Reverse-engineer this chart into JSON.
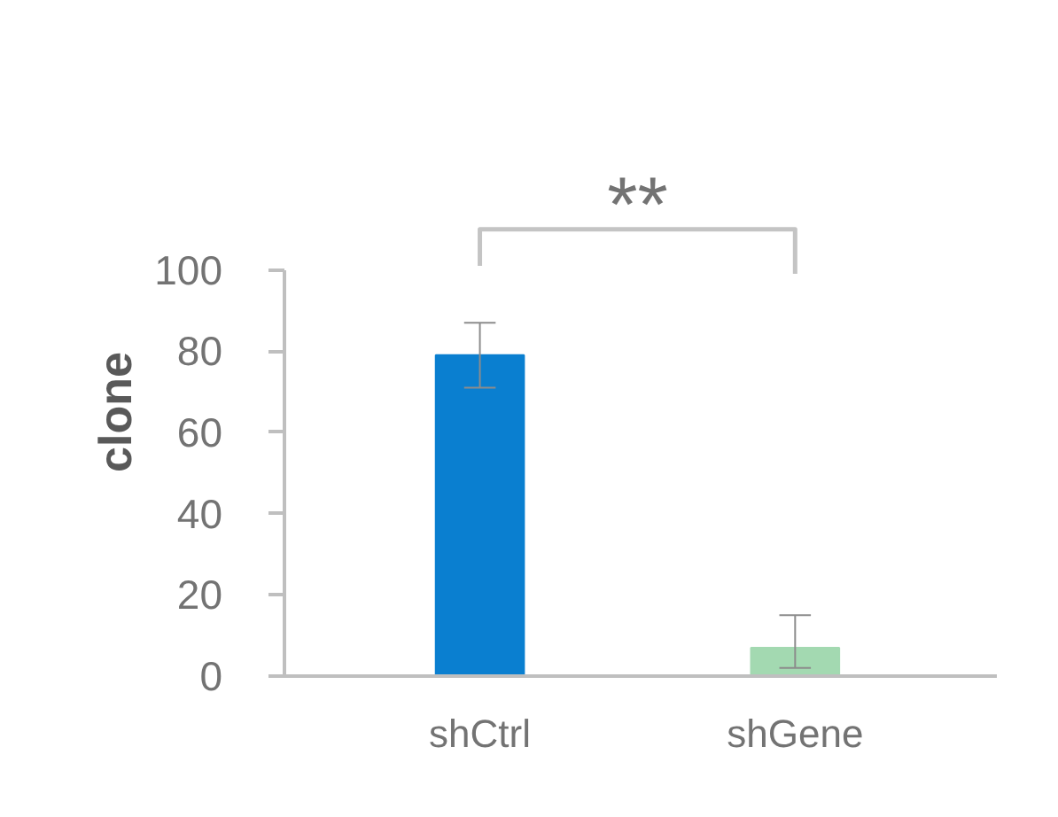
{
  "chart_data": {
    "type": "bar",
    "ylabel": "clone",
    "categories": [
      "shCtrl",
      "shGene"
    ],
    "values": [
      79,
      7
    ],
    "colors": [
      "#0a7fd0",
      "#a3d9b1"
    ],
    "errors": [
      8,
      [
        2,
        15
      ]
    ],
    "ylim": [
      0,
      100
    ],
    "yticks": [
      0,
      20,
      40,
      60,
      80,
      100
    ],
    "grid": false,
    "annotations": [
      "**"
    ]
  }
}
